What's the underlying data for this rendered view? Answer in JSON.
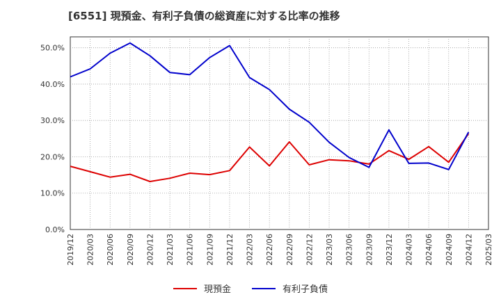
{
  "chart_data": {
    "type": "line",
    "title": "[6551]  現預金、有利子負債の総資産に対する比率の推移",
    "xlabel": "",
    "ylabel": "",
    "ylim": [
      0,
      53
    ],
    "y_ticks": [
      "0.0%",
      "10.0%",
      "20.0%",
      "30.0%",
      "40.0%",
      "50.0%"
    ],
    "y_tick_values": [
      0,
      10,
      20,
      30,
      40,
      50
    ],
    "categories": [
      "2019/12",
      "2020/03",
      "2020/06",
      "2020/09",
      "2020/12",
      "2021/03",
      "2021/06",
      "2021/09",
      "2021/12",
      "2022/03",
      "2022/06",
      "2022/09",
      "2022/12",
      "2023/03",
      "2023/06",
      "2023/09",
      "2023/12",
      "2024/03",
      "2024/06",
      "2024/09",
      "2024/12",
      "2025/03"
    ],
    "series": [
      {
        "name": "現預金",
        "color": "#dd0000",
        "values": [
          17.4,
          15.9,
          14.4,
          15.2,
          13.2,
          14.1,
          15.5,
          15.1,
          16.2,
          22.7,
          17.5,
          24.1,
          17.8,
          19.2,
          18.9,
          18.0,
          21.7,
          19.3,
          22.8,
          18.5,
          26.4,
          null
        ]
      },
      {
        "name": "有利子負債",
        "color": "#0000cc",
        "values": [
          42.0,
          44.2,
          48.5,
          51.3,
          47.8,
          43.2,
          42.6,
          47.3,
          50.6,
          41.8,
          38.5,
          33.1,
          29.5,
          24.0,
          19.8,
          17.1,
          27.4,
          18.2,
          18.3,
          16.5,
          26.8,
          null
        ]
      }
    ],
    "grid": true,
    "legend_position": "bottom"
  }
}
